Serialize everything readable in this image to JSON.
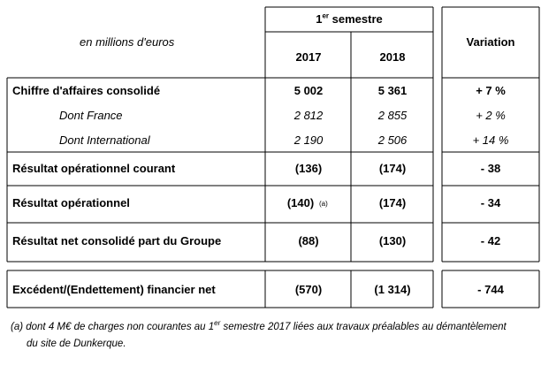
{
  "header": {
    "unit_note": "en millions d'euros",
    "period": {
      "main": "1",
      "sup": "er",
      "rest": " semestre"
    },
    "years": [
      "2017",
      "2018"
    ],
    "variation": "Variation"
  },
  "table": {
    "rows": [
      {
        "label": "Chiffre d'affaires consolidé",
        "values": [
          "5 002",
          "5 361"
        ],
        "variation": "+ 7 %",
        "style": "bold"
      },
      {
        "label": "Dont France",
        "values": [
          "2 812",
          "2 855"
        ],
        "variation": "+ 2 %",
        "style": "italic"
      },
      {
        "label": "Dont International",
        "values": [
          "2 190",
          "2 506"
        ],
        "variation": "+ 14 %",
        "style": "italic"
      },
      {
        "label": "Résultat opérationnel courant",
        "values": [
          "(136)",
          "(174)"
        ],
        "variation": "- 38",
        "style": "bold"
      },
      {
        "label": "Résultat opérationnel",
        "values": [
          "(140)",
          "(174)"
        ],
        "variation": "- 34",
        "style": "bold",
        "note": "(a)"
      },
      {
        "label": "Résultat net consolidé part du Groupe",
        "values": [
          "(88)",
          "(130)"
        ],
        "variation": "- 42",
        "style": "bold"
      },
      {
        "label": "Excédent/(Endettement) financier net",
        "values": [
          "(570)",
          "(1 314)"
        ],
        "variation": "- 744",
        "style": "bold"
      }
    ]
  },
  "footnote": {
    "start": "(a) dont 4 M€ de charges non courantes au 1",
    "sup": "er",
    "end": " semestre 2017 liées aux travaux préalables au démantèlement",
    "line2": "du site de Dunkerque."
  }
}
